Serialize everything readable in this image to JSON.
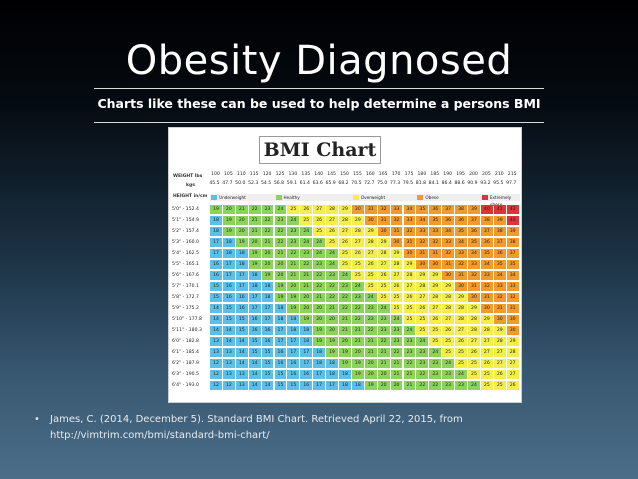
{
  "slide": {
    "title": "Obesity Diagnosed",
    "subtitle": "Charts like these can be used to help determine a persons BMI"
  },
  "bmi_chart": {
    "title": "BMI Chart",
    "weight_label": "WEIGHT lbs",
    "kg_label": "kgs",
    "height_label": "HEIGHT in/cm",
    "weights_lbs": [
      "100",
      "105",
      "110",
      "115",
      "120",
      "125",
      "130",
      "135",
      "140",
      "145",
      "150",
      "155",
      "160",
      "165",
      "170",
      "175",
      "180",
      "185",
      "190",
      "195",
      "200",
      "205",
      "210",
      "215"
    ],
    "weights_kg": [
      "45.5",
      "47.7",
      "50.0",
      "52.3",
      "54.5",
      "56.8",
      "59.1",
      "61.4",
      "63.6",
      "65.9",
      "68.2",
      "70.5",
      "72.7",
      "75.0",
      "77.3",
      "79.5",
      "81.8",
      "84.1",
      "86.4",
      "88.6",
      "90.9",
      "93.2",
      "95.5",
      "97.7"
    ],
    "categories": [
      {
        "label": "Underweight",
        "color": "#5bc0e8"
      },
      {
        "label": "Healthy",
        "color": "#8cd35a"
      },
      {
        "label": "Overweight",
        "color": "#f3ee4a"
      },
      {
        "label": "Obese",
        "color": "#f39a2a"
      },
      {
        "label": "Extremely obese",
        "color": "#e0323b"
      }
    ],
    "heights": [
      "5'0\" - 152.4",
      "5'1\" - 154.9",
      "5'2\" - 157.4",
      "5'3\" - 160.0",
      "5'4\" - 162.5",
      "5'5\" - 165.1",
      "5'6\" - 167.6",
      "5'7\" - 170.1",
      "5'8\" - 172.7",
      "5'9\" - 175.2",
      "5'10\" - 177.8",
      "5'11\" - 180.3",
      "6'0\" - 182.8",
      "6'1\" - 185.4",
      "6'2\" - 187.9",
      "6'3\" - 190.5",
      "6'4\" - 193.0"
    ],
    "rows": [
      [
        19,
        20,
        21,
        22,
        23,
        24,
        25,
        26,
        27,
        28,
        29,
        30,
        31,
        32,
        33,
        34,
        35,
        36,
        37,
        38,
        39,
        40,
        41,
        42
      ],
      [
        18,
        19,
        20,
        21,
        22,
        23,
        24,
        25,
        26,
        27,
        28,
        29,
        30,
        31,
        32,
        33,
        34,
        35,
        36,
        36,
        37,
        38,
        39,
        40
      ],
      [
        18,
        19,
        20,
        21,
        22,
        22,
        23,
        24,
        25,
        26,
        27,
        28,
        29,
        30,
        31,
        32,
        33,
        33,
        34,
        35,
        36,
        37,
        38,
        39
      ],
      [
        17,
        18,
        19,
        20,
        21,
        22,
        23,
        24,
        24,
        25,
        26,
        27,
        28,
        29,
        30,
        31,
        32,
        32,
        33,
        34,
        35,
        36,
        37,
        38
      ],
      [
        17,
        18,
        18,
        19,
        20,
        21,
        22,
        23,
        24,
        24,
        25,
        26,
        27,
        28,
        29,
        30,
        31,
        31,
        32,
        33,
        34,
        35,
        36,
        37
      ],
      [
        16,
        17,
        18,
        19,
        20,
        20,
        21,
        22,
        23,
        24,
        25,
        25,
        26,
        27,
        28,
        29,
        30,
        30,
        31,
        32,
        33,
        34,
        35,
        35
      ],
      [
        16,
        17,
        17,
        18,
        19,
        20,
        21,
        21,
        22,
        23,
        24,
        25,
        25,
        26,
        27,
        28,
        29,
        29,
        30,
        31,
        32,
        33,
        34,
        34
      ],
      [
        15,
        16,
        17,
        18,
        18,
        19,
        20,
        21,
        22,
        22,
        23,
        24,
        25,
        25,
        26,
        27,
        28,
        29,
        29,
        30,
        31,
        32,
        33,
        33
      ],
      [
        15,
        16,
        16,
        17,
        18,
        19,
        19,
        20,
        21,
        22,
        22,
        23,
        24,
        25,
        25,
        26,
        27,
        28,
        28,
        29,
        30,
        31,
        32,
        32
      ],
      [
        14,
        15,
        16,
        17,
        17,
        18,
        19,
        20,
        20,
        21,
        22,
        22,
        23,
        24,
        25,
        25,
        26,
        27,
        28,
        28,
        29,
        30,
        31,
        31
      ],
      [
        14,
        15,
        15,
        16,
        17,
        18,
        18,
        19,
        20,
        20,
        21,
        22,
        23,
        23,
        24,
        25,
        25,
        26,
        27,
        28,
        28,
        29,
        30,
        30
      ],
      [
        14,
        14,
        15,
        16,
        16,
        17,
        18,
        18,
        19,
        20,
        21,
        21,
        22,
        23,
        23,
        24,
        25,
        25,
        26,
        27,
        28,
        28,
        29,
        30
      ],
      [
        13,
        14,
        14,
        15,
        16,
        17,
        17,
        18,
        19,
        19,
        20,
        21,
        21,
        22,
        23,
        23,
        24,
        25,
        25,
        26,
        27,
        27,
        28,
        29
      ],
      [
        13,
        13,
        14,
        15,
        15,
        16,
        17,
        17,
        18,
        19,
        19,
        20,
        21,
        21,
        22,
        23,
        23,
        24,
        25,
        25,
        26,
        27,
        27,
        28
      ],
      [
        12,
        13,
        14,
        14,
        15,
        16,
        16,
        17,
        18,
        18,
        19,
        19,
        20,
        21,
        21,
        22,
        23,
        23,
        24,
        25,
        25,
        26,
        27,
        27
      ],
      [
        12,
        13,
        13,
        14,
        15,
        15,
        16,
        16,
        17,
        18,
        18,
        19,
        20,
        20,
        21,
        21,
        22,
        23,
        23,
        24,
        25,
        25,
        26,
        27
      ],
      [
        12,
        12,
        13,
        14,
        14,
        15,
        15,
        16,
        17,
        17,
        18,
        18,
        19,
        20,
        20,
        21,
        22,
        22,
        23,
        23,
        24,
        25,
        25,
        26
      ]
    ]
  },
  "reference": {
    "bullet": "•",
    "text": "James, C. (2014, December 5). Standard BMI Chart. Retrieved April 22, 2015, from http://vimtrim.com/bmi/standard-bmi-chart/"
  }
}
